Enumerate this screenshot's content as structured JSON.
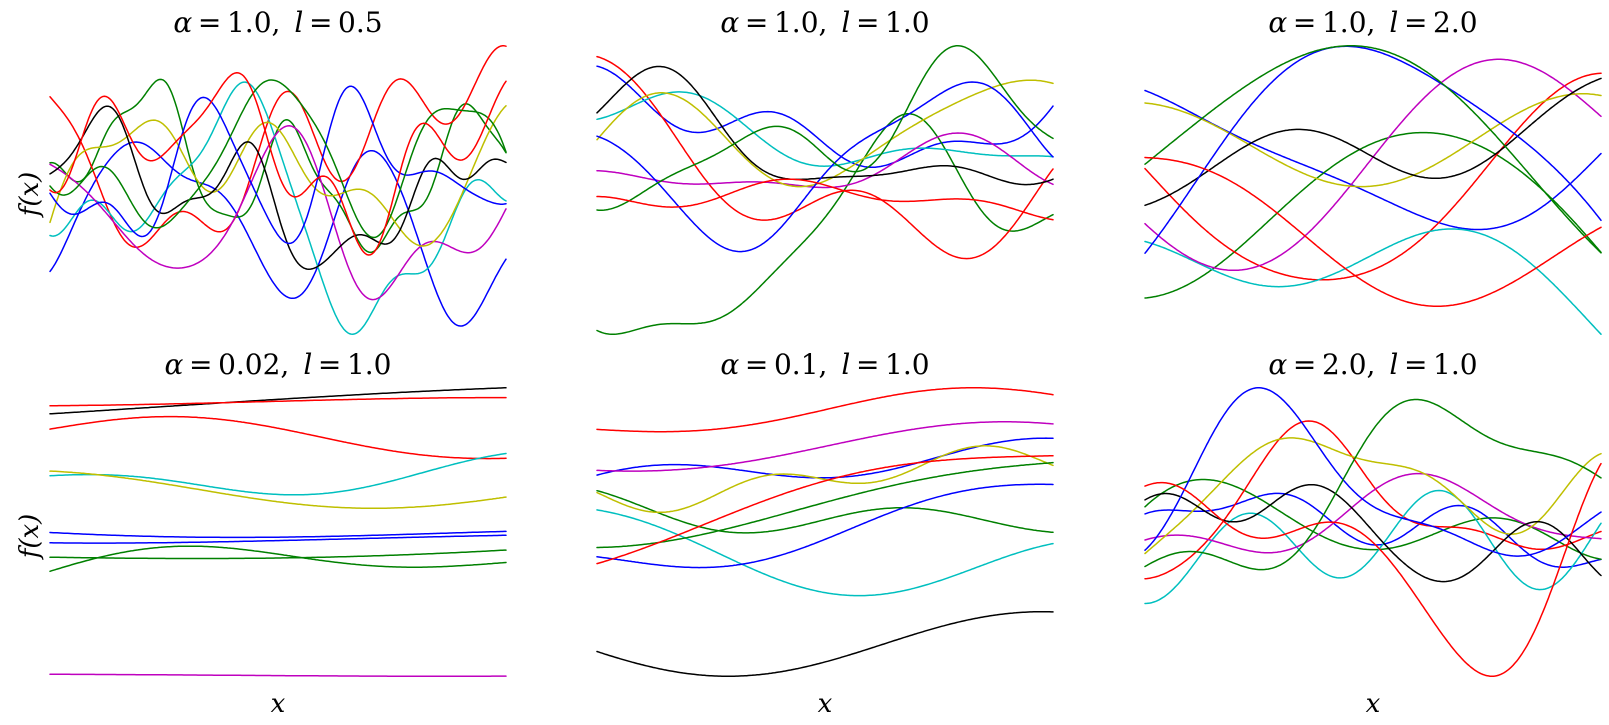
{
  "figure": {
    "colors": {
      "blue": "#0000ff",
      "green": "#008000",
      "red": "#ff0000",
      "cyan": "#00bfbf",
      "magenta": "#bf00bf",
      "yellow": "#bfbf00",
      "black": "#000000"
    }
  },
  "chart_data": [
    {
      "type": "line",
      "title": "α = 1.0, l = 0.5",
      "alpha_text": "1.0",
      "l_text": "0.5",
      "alpha": 1.0,
      "l": 0.5,
      "ylabel": "f(x)",
      "xlabel": "",
      "grid": false,
      "series": [
        {
          "color": "blue",
          "seed": 11
        },
        {
          "color": "green",
          "seed": 12
        },
        {
          "color": "red",
          "seed": 13
        },
        {
          "color": "cyan",
          "seed": 14
        },
        {
          "color": "magenta",
          "seed": 15
        },
        {
          "color": "yellow",
          "seed": 16
        },
        {
          "color": "black",
          "seed": 17
        },
        {
          "color": "blue",
          "seed": 18
        },
        {
          "color": "green",
          "seed": 19
        },
        {
          "color": "red",
          "seed": 20
        }
      ]
    },
    {
      "type": "line",
      "title": "α = 1.0, l = 1.0",
      "alpha_text": "1.0",
      "l_text": "1.0",
      "alpha": 1.0,
      "l": 1.0,
      "ylabel": "",
      "xlabel": "",
      "grid": false,
      "series": [
        {
          "color": "blue",
          "seed": 21
        },
        {
          "color": "green",
          "seed": 22
        },
        {
          "color": "red",
          "seed": 23
        },
        {
          "color": "cyan",
          "seed": 24
        },
        {
          "color": "magenta",
          "seed": 25
        },
        {
          "color": "yellow",
          "seed": 26
        },
        {
          "color": "black",
          "seed": 27
        },
        {
          "color": "blue",
          "seed": 28
        },
        {
          "color": "green",
          "seed": 29
        },
        {
          "color": "red",
          "seed": 30
        }
      ]
    },
    {
      "type": "line",
      "title": "α = 1.0, l = 2.0",
      "alpha_text": "1.0",
      "l_text": "2.0",
      "alpha": 1.0,
      "l": 2.0,
      "ylabel": "",
      "xlabel": "",
      "grid": false,
      "series": [
        {
          "color": "blue",
          "seed": 31
        },
        {
          "color": "green",
          "seed": 32
        },
        {
          "color": "red",
          "seed": 33
        },
        {
          "color": "cyan",
          "seed": 34
        },
        {
          "color": "magenta",
          "seed": 35
        },
        {
          "color": "yellow",
          "seed": 36
        },
        {
          "color": "black",
          "seed": 37
        },
        {
          "color": "blue",
          "seed": 38
        },
        {
          "color": "green",
          "seed": 39
        },
        {
          "color": "red",
          "seed": 40
        }
      ]
    },
    {
      "type": "line",
      "title": "α = 0.02, l = 1.0",
      "alpha_text": "0.02",
      "l_text": "1.0",
      "alpha": 0.02,
      "l": 1.0,
      "ylabel": "f(x)",
      "xlabel": "x",
      "grid": false,
      "series": [
        {
          "color": "blue",
          "seed": 41
        },
        {
          "color": "green",
          "seed": 42
        },
        {
          "color": "red",
          "seed": 43
        },
        {
          "color": "cyan",
          "seed": 44
        },
        {
          "color": "magenta",
          "seed": 45
        },
        {
          "color": "yellow",
          "seed": 46
        },
        {
          "color": "black",
          "seed": 47
        },
        {
          "color": "blue",
          "seed": 48
        },
        {
          "color": "green",
          "seed": 49
        },
        {
          "color": "red",
          "seed": 50
        }
      ]
    },
    {
      "type": "line",
      "title": "α = 0.1, l = 1.0",
      "alpha_text": "0.1",
      "l_text": "1.0",
      "alpha": 0.1,
      "l": 1.0,
      "ylabel": "",
      "xlabel": "x",
      "grid": false,
      "series": [
        {
          "color": "blue",
          "seed": 51
        },
        {
          "color": "green",
          "seed": 52
        },
        {
          "color": "red",
          "seed": 53
        },
        {
          "color": "cyan",
          "seed": 54
        },
        {
          "color": "magenta",
          "seed": 55
        },
        {
          "color": "yellow",
          "seed": 56
        },
        {
          "color": "black",
          "seed": 57
        },
        {
          "color": "blue",
          "seed": 58
        },
        {
          "color": "green",
          "seed": 59
        },
        {
          "color": "red",
          "seed": 60
        }
      ]
    },
    {
      "type": "line",
      "title": "α = 2.0, l = 1.0",
      "alpha_text": "2.0",
      "l_text": "1.0",
      "alpha": 2.0,
      "l": 1.0,
      "ylabel": "",
      "xlabel": "x",
      "grid": false,
      "series": [
        {
          "color": "blue",
          "seed": 61
        },
        {
          "color": "green",
          "seed": 62
        },
        {
          "color": "red",
          "seed": 63
        },
        {
          "color": "cyan",
          "seed": 64
        },
        {
          "color": "magenta",
          "seed": 65
        },
        {
          "color": "yellow",
          "seed": 66
        },
        {
          "color": "black",
          "seed": 67
        },
        {
          "color": "blue",
          "seed": 68
        },
        {
          "color": "green",
          "seed": 69
        },
        {
          "color": "red",
          "seed": 70
        }
      ]
    }
  ]
}
